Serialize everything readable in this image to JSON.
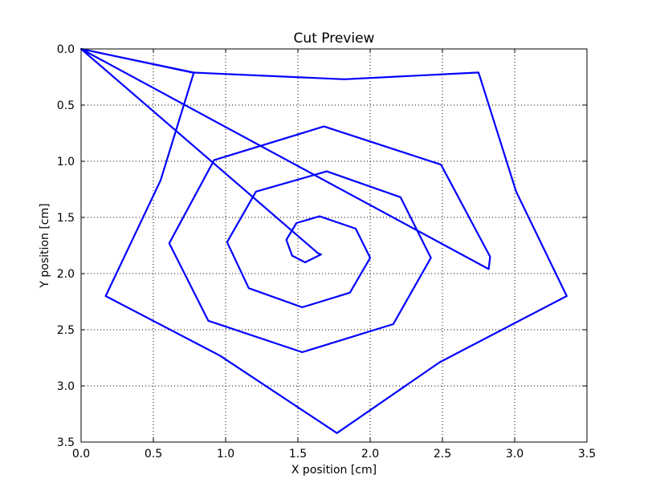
{
  "chart_data": {
    "type": "line",
    "title": "Cut Preview",
    "x_label": "X position [cm]",
    "y_label": "Y position [cm]",
    "xlim": [
      0,
      3.5
    ],
    "ylim": [
      3.5,
      0
    ],
    "y_inverted": true,
    "grid": true,
    "xticks": [
      {
        "value": 0,
        "label": "0.0"
      },
      0.5,
      {
        "value": 1,
        "label": "1.0"
      },
      1.5,
      {
        "value": 2,
        "label": "2.0"
      },
      2.5,
      {
        "value": 3,
        "label": "3.0"
      },
      3.5
    ],
    "yticks": [
      {
        "value": 0,
        "label": "0.0"
      },
      0.5,
      {
        "value": 1,
        "label": "1.0"
      },
      1.5,
      {
        "value": 2,
        "label": "2.0"
      },
      2.5,
      {
        "value": 3,
        "label": "3.0"
      },
      3.5
    ],
    "series": [
      {
        "color": "#0000ff",
        "x": [
          0,
          0.77,
          1.82,
          2.75,
          3.01,
          3.36,
          2.48,
          1.77,
          0.96,
          0.17,
          0.55,
          0.78,
          0,
          2.82,
          2.83,
          2.49,
          1.68,
          0.92,
          0.61,
          0.88,
          1.53,
          2.16,
          2.42,
          2.21,
          1.7,
          1.21,
          1.01,
          1.16,
          1.53,
          1.86,
          2.0,
          1.9,
          1.65,
          1.49,
          1.42,
          1.46,
          1.55,
          1.66,
          1.64,
          0
        ],
        "values": [
          0,
          0.21,
          0.27,
          0.21,
          1.27,
          2.2,
          2.79,
          3.42,
          2.73,
          2.2,
          1.17,
          0.21,
          0,
          1.96,
          1.85,
          1.03,
          0.69,
          0.99,
          1.73,
          2.42,
          2.7,
          2.45,
          1.86,
          1.32,
          1.09,
          1.27,
          1.72,
          2.13,
          2.3,
          2.17,
          1.86,
          1.6,
          1.49,
          1.55,
          1.7,
          1.84,
          1.9,
          1.83,
          1.82,
          0
        ]
      }
    ]
  }
}
